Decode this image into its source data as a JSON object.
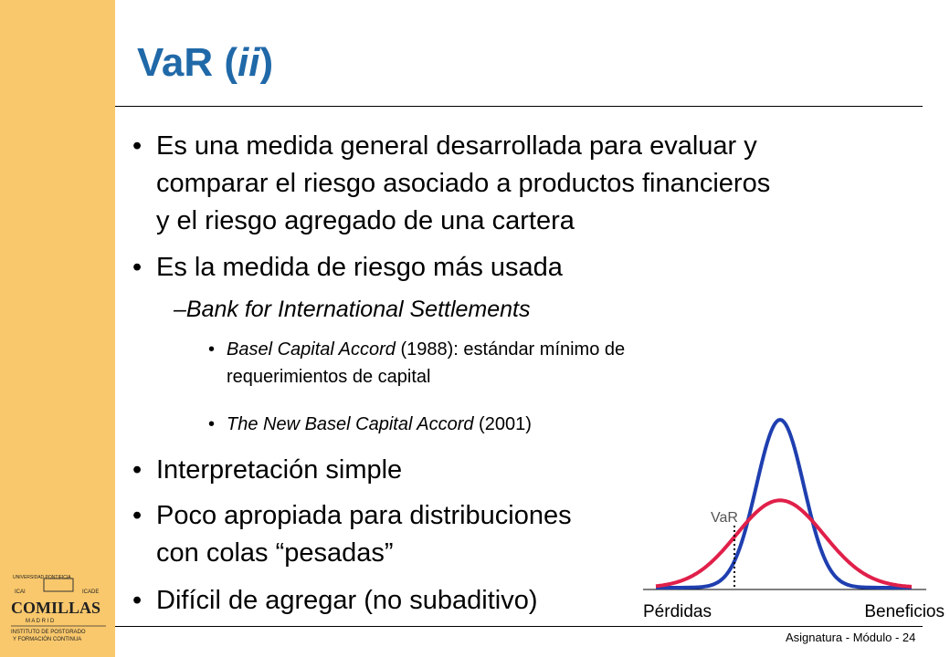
{
  "slide": {
    "title_main": "VaR (",
    "title_italic": "ii",
    "title_close": ")"
  },
  "bullets": {
    "b1_line1": "Es una medida general desarrollada para evaluar y",
    "b1_line2": "comparar el riesgo asociado a productos financieros",
    "b1_line3": "y el riesgo agregado de una cartera",
    "b2": "Es la medida de riesgo más usada",
    "sub1": "–Bank for International  Settlements",
    "sub1a_italic": "Basel Capital Accord",
    "sub1a_rest": " (1988): estándar mínimo de",
    "sub1a_line2": "requerimientos de capital",
    "sub1b_italic": "The New Basel Capital Accord",
    "sub1b_rest": " (2001)",
    "b3": "Interpretación simple",
    "b4_line1": "Poco apropiada para distribuciones",
    "b4_line2": "con colas “pesadas”",
    "b5": "Difícil de agregar (no subaditivo)",
    "bullet_char": "•"
  },
  "footer": {
    "text": "Asignatura - Módulo - 24"
  },
  "chart_data": {
    "type": "line",
    "annotation": "VaR",
    "xlabel_left": "Pérdidas",
    "xlabel_right": "Beneficios",
    "series": [
      {
        "color": "#1f3fb0",
        "shape": "narrow-tall",
        "peak": 1.0
      },
      {
        "color": "#e0204a",
        "shape": "wide-flat",
        "peak": 0.52
      }
    ],
    "colors": {
      "blue": "#1f3fb0",
      "red": "#e0204a"
    }
  },
  "logo": {
    "line1": "UNIVERSIDAD PONTIFICIA",
    "line2a": "ICAI",
    "line2b": "ICADE",
    "line3": "COMILLAS",
    "line4": "M A D R I D",
    "line5": "INSTITUTO DE POSTGRADO",
    "line6": "Y FORMACIÓN CONTINUA"
  }
}
